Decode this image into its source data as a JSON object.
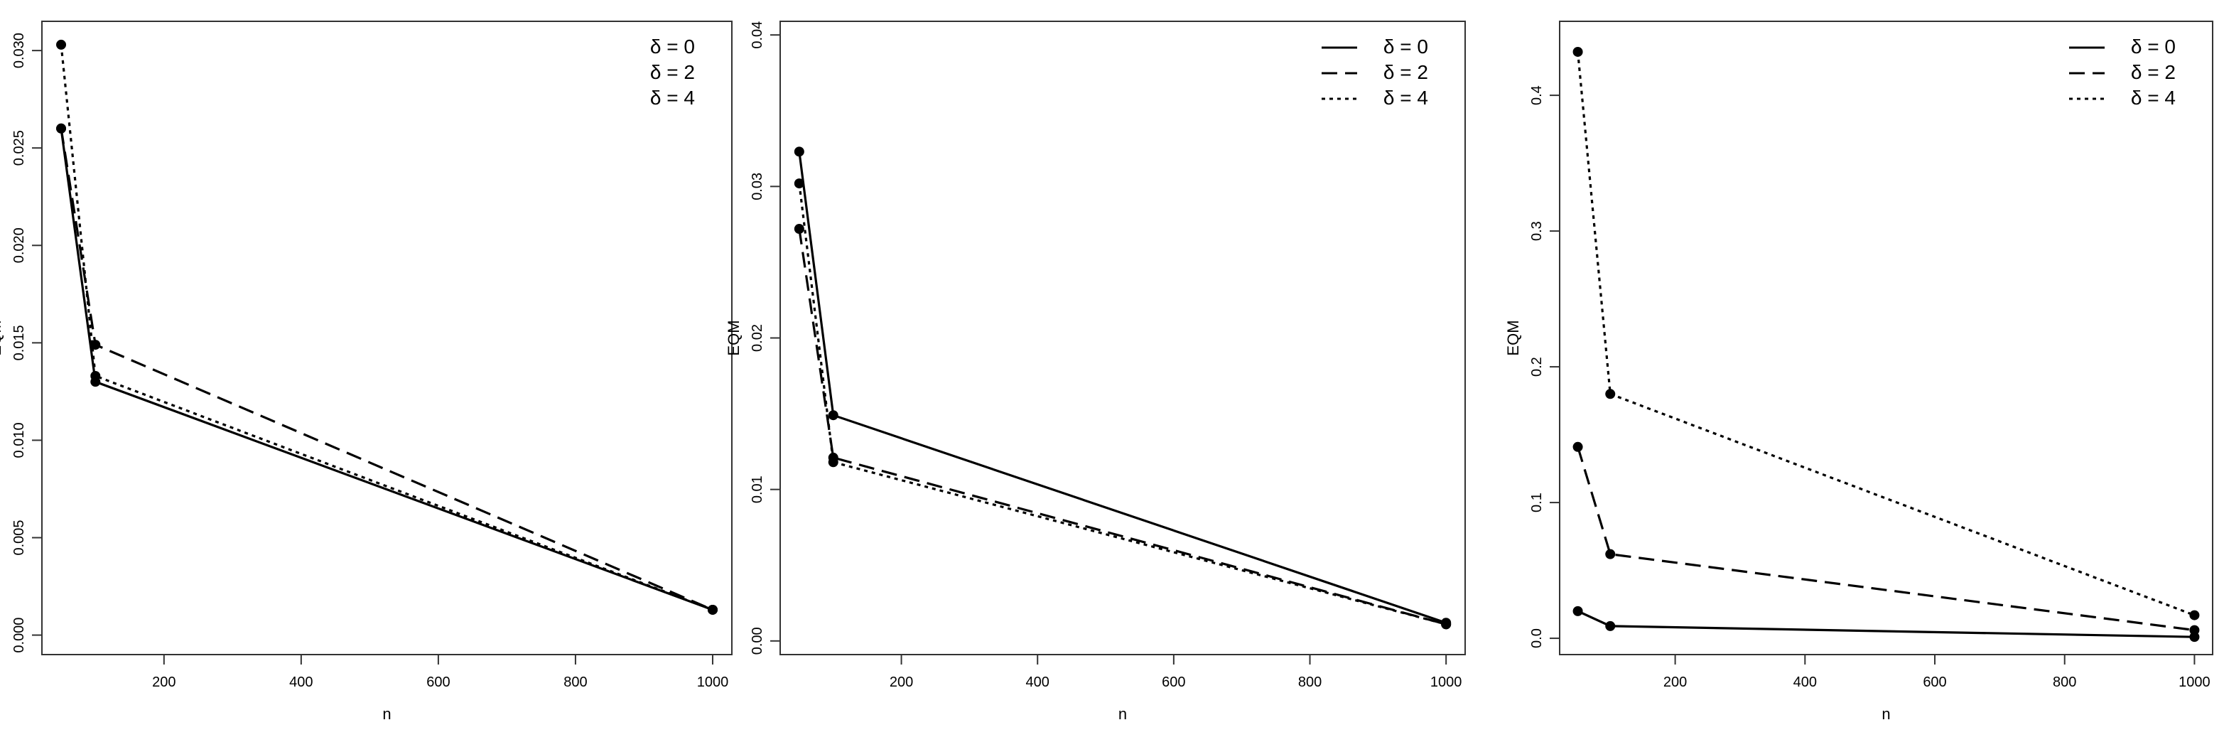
{
  "chart_data": [
    {
      "type": "line",
      "title": "",
      "xlabel": "n",
      "ylabel": "EQM",
      "xlim": [
        22,
        1028
      ],
      "ylim": [
        -0.001,
        0.0315
      ],
      "xticks": [
        "200",
        "400",
        "600",
        "800",
        "1000"
      ],
      "yticks": [
        "0.000",
        "0.005",
        "0.010",
        "0.015",
        "0.020",
        "0.025",
        "0.030"
      ],
      "x": [
        50,
        100,
        1000
      ],
      "legend_position": "top-right",
      "legend_has_lines": false,
      "series": [
        {
          "name": "δ = 0",
          "dash": "solid",
          "values": [
            0.026,
            0.013,
            0.0013
          ]
        },
        {
          "name": "δ = 2",
          "dash": "dashed",
          "values": [
            0.026,
            0.0149,
            0.0013
          ]
        },
        {
          "name": "δ = 4",
          "dash": "dotted",
          "values": [
            0.0303,
            0.0133,
            0.0013
          ]
        }
      ]
    },
    {
      "type": "line",
      "title": "",
      "xlabel": "n",
      "ylabel": "EQM",
      "xlim": [
        22,
        1028
      ],
      "ylim": [
        -0.0009,
        0.0409
      ],
      "xticks": [
        "200",
        "400",
        "600",
        "800",
        "1000"
      ],
      "yticks": [
        "0.00",
        "0.01",
        "0.02",
        "0.03",
        "0.04"
      ],
      "x": [
        50,
        100,
        1000
      ],
      "legend_position": "top-right",
      "legend_has_lines": true,
      "series": [
        {
          "name": "δ = 0",
          "dash": "solid",
          "values": [
            0.0323,
            0.0149,
            0.0012
          ]
        },
        {
          "name": "δ = 2",
          "dash": "dashed",
          "values": [
            0.0272,
            0.0121,
            0.0011
          ]
        },
        {
          "name": "δ = 4",
          "dash": "dotted",
          "values": [
            0.0302,
            0.0118,
            0.0011
          ]
        }
      ]
    },
    {
      "type": "line",
      "title": "",
      "xlabel": "n",
      "ylabel": "EQM",
      "xlim": [
        22,
        1028
      ],
      "ylim": [
        -0.012,
        0.4545
      ],
      "xticks": [
        "200",
        "400",
        "600",
        "800",
        "1000"
      ],
      "yticks": [
        "0.0",
        "0.1",
        "0.2",
        "0.3",
        "0.4"
      ],
      "x": [
        50,
        100,
        1000
      ],
      "legend_position": "top-right",
      "legend_has_lines": true,
      "series": [
        {
          "name": "δ = 0",
          "dash": "solid",
          "values": [
            0.02,
            0.009,
            0.001
          ]
        },
        {
          "name": "δ = 2",
          "dash": "dashed",
          "values": [
            0.141,
            0.062,
            0.006
          ]
        },
        {
          "name": "δ = 4",
          "dash": "dotted",
          "values": [
            0.432,
            0.18,
            0.017
          ]
        }
      ]
    }
  ]
}
